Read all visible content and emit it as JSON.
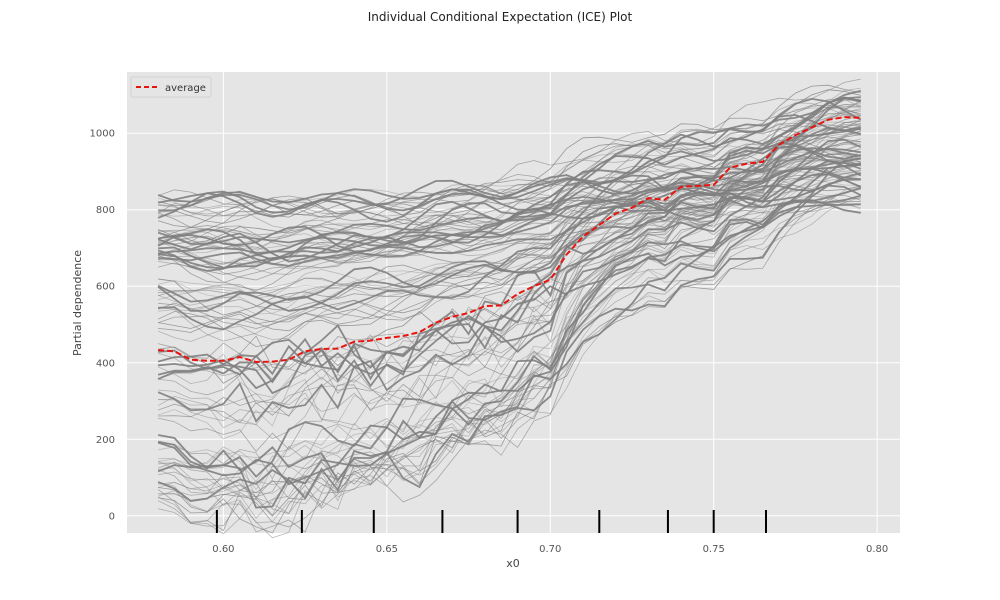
{
  "chart_data": {
    "type": "line",
    "title": "Individual Conditional Expectation (ICE) Plot",
    "xlabel": "x0",
    "ylabel": "Partial dependence",
    "xlim": [
      0.5705,
      0.807
    ],
    "ylim": [
      -45,
      1160
    ],
    "x_ticks": [
      0.6,
      0.65,
      0.7,
      0.75,
      0.8
    ],
    "x_tick_labels": [
      "0.60",
      "0.65",
      "0.70",
      "0.75",
      "0.80"
    ],
    "y_ticks": [
      0,
      200,
      400,
      600,
      800,
      1000
    ],
    "y_tick_labels": [
      "0",
      "200",
      "400",
      "600",
      "800",
      "1000"
    ],
    "grid": true,
    "legend": {
      "position": "top-left",
      "entries": [
        "average"
      ]
    },
    "rug_x": [
      0.598,
      0.624,
      0.646,
      0.667,
      0.69,
      0.715,
      0.736,
      0.75,
      0.766
    ],
    "x": [
      0.58,
      0.585,
      0.59,
      0.595,
      0.6,
      0.605,
      0.61,
      0.615,
      0.62,
      0.625,
      0.63,
      0.635,
      0.64,
      0.645,
      0.65,
      0.655,
      0.66,
      0.665,
      0.67,
      0.675,
      0.68,
      0.685,
      0.69,
      0.695,
      0.7,
      0.705,
      0.71,
      0.715,
      0.72,
      0.725,
      0.73,
      0.735,
      0.74,
      0.745,
      0.75,
      0.755,
      0.76,
      0.765,
      0.77,
      0.775,
      0.78,
      0.785,
      0.79,
      0.795
    ],
    "series": [
      {
        "name": "average",
        "color": "#e8150f",
        "values": [
          433,
          430,
          408,
          405,
          405,
          415,
          402,
          403,
          408,
          430,
          436,
          437,
          455,
          458,
          465,
          470,
          480,
          505,
          520,
          530,
          548,
          550,
          580,
          600,
          617,
          683,
          730,
          760,
          790,
          805,
          830,
          826,
          860,
          862,
          865,
          910,
          920,
          925,
          970,
          995,
          1015,
          1035,
          1042,
          1040
        ]
      }
    ],
    "ice_color": "#808080"
  }
}
